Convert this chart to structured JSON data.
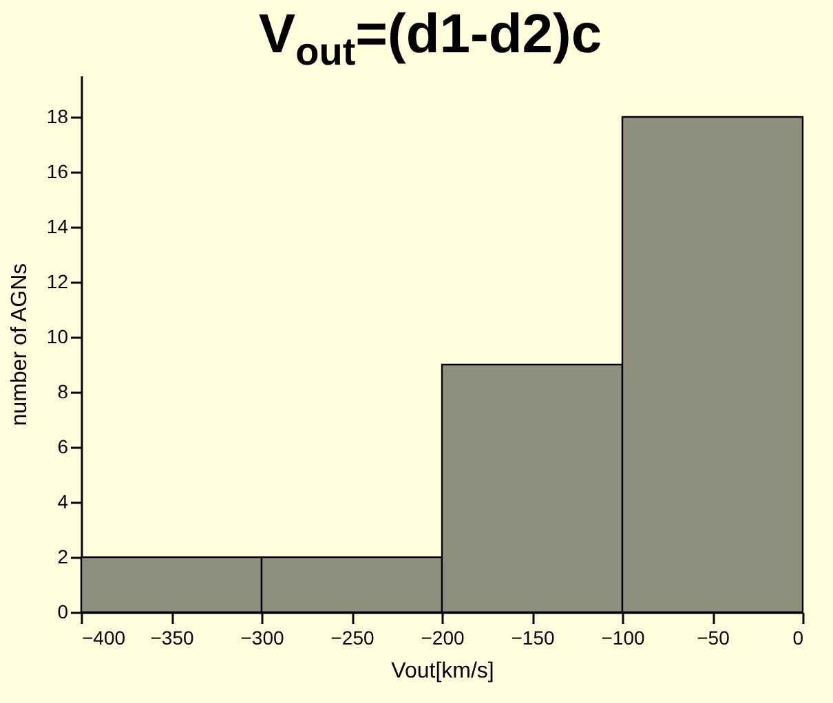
{
  "chart_data": {
    "type": "histogram",
    "title": "V$_{out}$=(d1-d2)c",
    "xlabel": "Vout[km/s]",
    "ylabel": "number of AGNs",
    "bins": [
      -400,
      -300,
      -200,
      -100,
      0
    ],
    "values": [
      2,
      2,
      9,
      18
    ],
    "color": "#8f8f80",
    "xlim": [
      -400,
      0
    ],
    "xticks": [
      -400,
      -350,
      -300,
      -250,
      -200,
      -150,
      -100,
      -50,
      0
    ],
    "ylim": [
      0,
      19.5
    ],
    "yticks": [
      0,
      2,
      4,
      6,
      8,
      10,
      12,
      14,
      16,
      18
    ],
    "grid": false
  }
}
